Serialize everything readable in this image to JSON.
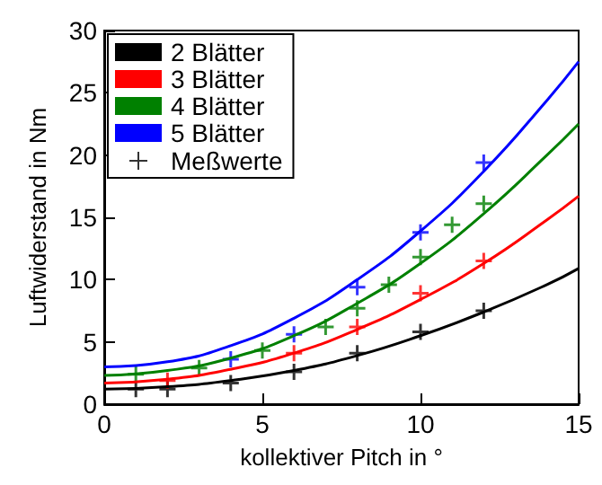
{
  "chart_data": {
    "type": "line",
    "xlabel": "kollektiver Pitch in °",
    "ylabel": "Luftwiderstand in Nm",
    "xlim": [
      0,
      15
    ],
    "xticks": [
      0,
      5,
      10,
      15
    ],
    "ylim": [
      0,
      30
    ],
    "yticks": [
      0,
      5,
      10,
      15,
      20,
      25,
      30
    ],
    "grid": false,
    "legend": "top left",
    "marker": "none",
    "line_style": "solid",
    "series": [
      {
        "name": "2 Blätter",
        "color": "#000000",
        "x": [
          0,
          2,
          4,
          6,
          8,
          10,
          12,
          14,
          15
        ],
        "values": [
          1.2,
          1.4,
          1.9,
          2.7,
          3.9,
          5.5,
          7.4,
          9.6,
          10.9
        ]
      },
      {
        "name": "3 Blätter",
        "color": "#ff0000",
        "x": [
          0,
          2,
          4,
          6,
          8,
          10,
          12,
          14,
          15
        ],
        "values": [
          1.7,
          2.0,
          2.8,
          4.1,
          6.0,
          8.4,
          11.3,
          14.8,
          16.7
        ]
      },
      {
        "name": "4 Blätter",
        "color": "#008000",
        "x": [
          0,
          2,
          4,
          6,
          8,
          10,
          12,
          14,
          15
        ],
        "values": [
          2.3,
          2.7,
          3.7,
          5.5,
          8.1,
          11.3,
          15.3,
          20.0,
          22.5
        ]
      },
      {
        "name": "5 Blätter",
        "color": "#0000ff",
        "x": [
          0,
          2,
          4,
          6,
          8,
          10,
          12,
          14,
          15
        ],
        "values": [
          3.0,
          3.4,
          4.7,
          6.9,
          10.0,
          13.9,
          18.7,
          24.4,
          27.5
        ]
      },
      {
        "name": "Meßwerte",
        "type": "scatter",
        "marker": "cross",
        "color": "#000000",
        "x": [
          1,
          2,
          4,
          6,
          8,
          10,
          12
        ],
        "values": [
          1.2,
          1.2,
          1.7,
          2.6,
          4.1,
          5.8,
          7.5
        ]
      },
      {
        "type": "scatter",
        "marker": "cross",
        "color": "#ff0000",
        "x": [
          2,
          6,
          8,
          10,
          12
        ],
        "values": [
          1.9,
          4.1,
          6.2,
          8.9,
          11.5
        ]
      },
      {
        "type": "scatter",
        "marker": "cross",
        "color": "#008000",
        "x": [
          1,
          3,
          5,
          7,
          8,
          9,
          10,
          11,
          12
        ],
        "values": [
          2.4,
          2.9,
          4.3,
          6.2,
          7.7,
          9.6,
          11.8,
          14.4,
          16.1
        ]
      },
      {
        "type": "scatter",
        "marker": "cross",
        "color": "#0000ff",
        "x": [
          4,
          6,
          8,
          10,
          12
        ],
        "values": [
          3.6,
          5.6,
          9.4,
          13.8,
          19.4
        ]
      }
    ]
  }
}
